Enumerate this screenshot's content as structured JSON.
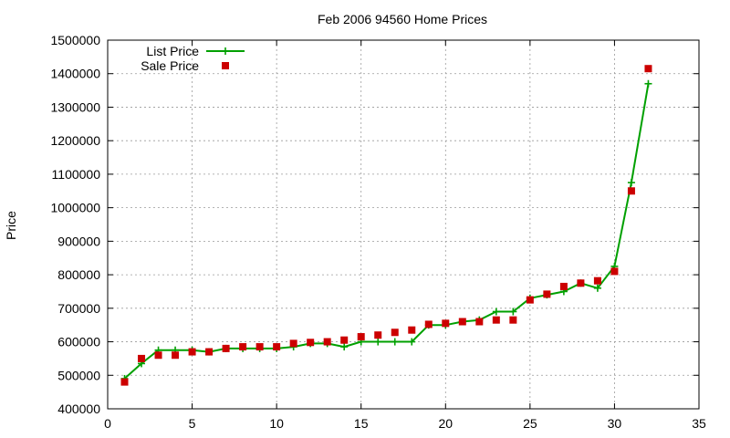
{
  "chart_data": {
    "type": "line",
    "title": "Feb 2006 94560 Home Prices",
    "xlabel": "",
    "ylabel": "Price",
    "xlim": [
      0,
      35
    ],
    "ylim": [
      400000,
      1500000
    ],
    "xticks": [
      0,
      5,
      10,
      15,
      20,
      25,
      30,
      35
    ],
    "yticks": [
      400000,
      500000,
      600000,
      700000,
      800000,
      900000,
      1000000,
      1100000,
      1200000,
      1300000,
      1400000,
      1500000
    ],
    "grid": true,
    "legend_position": "top-left",
    "x": [
      1,
      2,
      3,
      4,
      5,
      6,
      7,
      8,
      9,
      10,
      11,
      12,
      13,
      14,
      15,
      16,
      17,
      18,
      19,
      20,
      21,
      22,
      23,
      24,
      25,
      26,
      27,
      28,
      29,
      30,
      31,
      32
    ],
    "series": [
      {
        "name": "List Price",
        "style": "line-plus",
        "color": "#00a000",
        "values": [
          490000,
          535000,
          575000,
          575000,
          575000,
          570000,
          580000,
          580000,
          580000,
          580000,
          585000,
          595000,
          595000,
          585000,
          600000,
          600000,
          600000,
          600000,
          650000,
          650000,
          660000,
          665000,
          690000,
          690000,
          730000,
          740000,
          750000,
          775000,
          760000,
          825000,
          1075000,
          1370000
        ]
      },
      {
        "name": "Sale Price",
        "style": "square-points",
        "color": "#cc0000",
        "values": [
          480000,
          550000,
          560000,
          560000,
          570000,
          570000,
          580000,
          585000,
          585000,
          585000,
          595000,
          598000,
          600000,
          605000,
          615000,
          620000,
          628000,
          635000,
          652000,
          655000,
          660000,
          660000,
          665000,
          665000,
          725000,
          742000,
          765000,
          775000,
          782000,
          810000,
          1050000,
          1415000
        ]
      }
    ]
  }
}
